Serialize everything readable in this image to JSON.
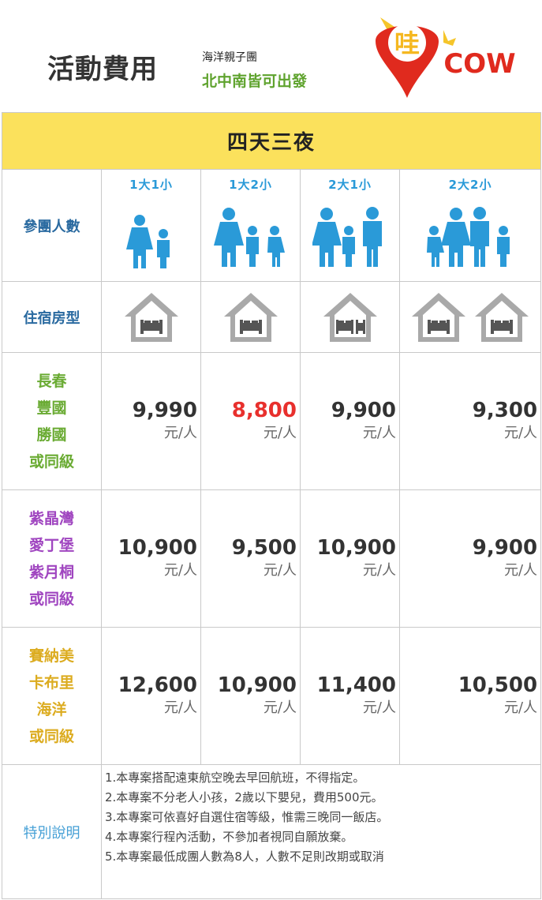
{
  "header": {
    "title": "活動費用",
    "tour_name": "海洋親子團",
    "departure": "北中南皆可出發",
    "logo": {
      "char": "哇",
      "text": "COW",
      "colors": {
        "pin": "#e02a1e",
        "ring": "#f5c52a",
        "text": "#e02a1e"
      }
    }
  },
  "table": {
    "title": "四天三夜",
    "row_labels": {
      "people": "參團人數",
      "room": "住宿房型",
      "notes": "特別說明"
    },
    "party_types": [
      {
        "caption": "1大1小",
        "icon": "family-1-adult-1-child-icon"
      },
      {
        "caption": "1大2小",
        "icon": "family-1-adult-2-children-icon"
      },
      {
        "caption": "2大1小",
        "icon": "family-2-adults-1-child-icon"
      },
      {
        "caption": "2大2小",
        "icon": "family-2-adults-2-children-icon"
      }
    ],
    "room_types": [
      {
        "icon": "double-bed-room-icon"
      },
      {
        "icon": "double-bed-room-icon"
      },
      {
        "icon": "double-plus-single-bed-room-icon"
      },
      {
        "icon": "two-double-bed-rooms-icon"
      }
    ],
    "unit": "元/人",
    "hotel_groups": [
      {
        "hotels": [
          "長春",
          "豐國",
          "勝國",
          "或同級"
        ],
        "color": "#6aab33",
        "prices": [
          "9,990",
          "8,800",
          "9,900",
          "9,300"
        ],
        "highlight_index": 1,
        "highlight_color": "#e8302d"
      },
      {
        "hotels": [
          "紫晶灣",
          "愛丁堡",
          "紫月桐",
          "或同級"
        ],
        "color": "#a046c0",
        "prices": [
          "10,900",
          "9,500",
          "10,900",
          "9,900"
        ]
      },
      {
        "hotels": [
          "賽納美",
          "卡布里",
          "海洋",
          "或同級"
        ],
        "color": "#dcac20",
        "prices": [
          "12,600",
          "10,900",
          "11,400",
          "10,500"
        ]
      }
    ],
    "notes": [
      "1.本專案搭配遠東航空晚去早回航班，不得指定。",
      "2.本專案不分老人小孩，2歲以下嬰兒，費用500元。",
      "3.本專案可依喜好自選住宿等級，惟需三晚同一飯店。",
      "4.本專案行程內活動，不參加者視同自願放棄。",
      "5.本專案最低成團人數為8人，人數不足則改期或取消"
    ]
  }
}
